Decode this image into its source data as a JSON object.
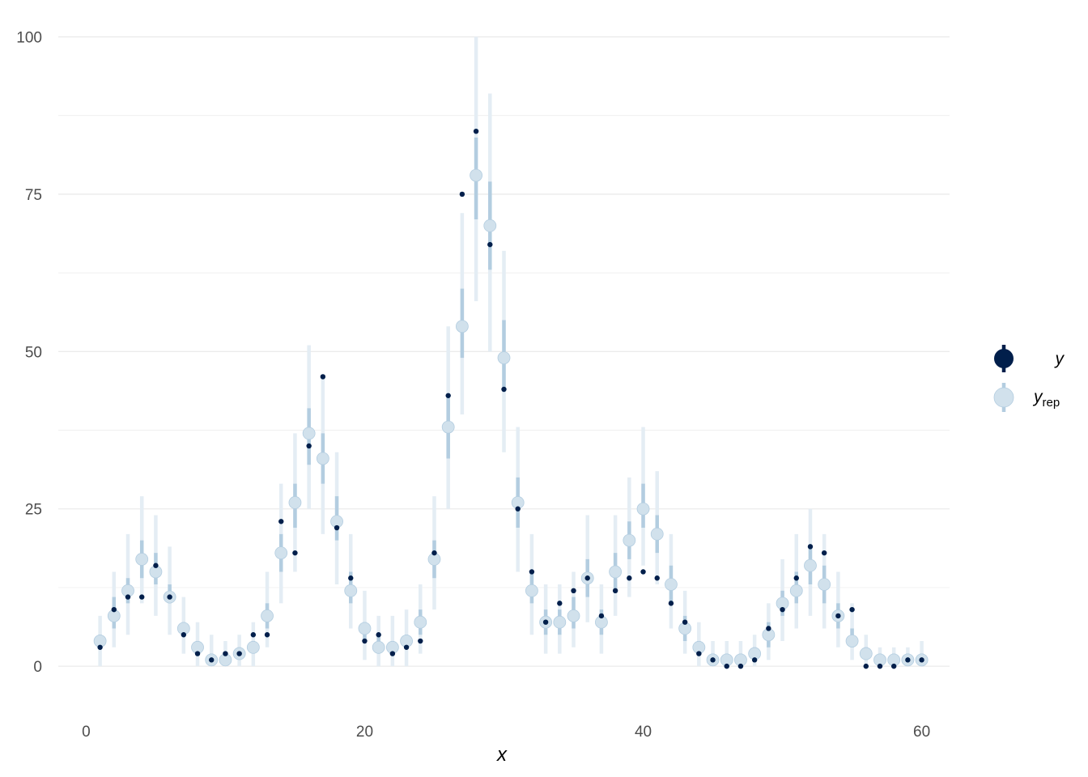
{
  "chart_data": {
    "type": "scatter",
    "xlabel": "x",
    "ylabel": "",
    "xlim": [
      -2,
      62
    ],
    "ylim": [
      -5,
      102
    ],
    "x_ticks": [
      0,
      20,
      40,
      60
    ],
    "y_ticks": [
      0,
      25,
      50,
      75,
      100
    ],
    "x_tick_labels": [
      "0",
      "20",
      "40",
      "60"
    ],
    "y_tick_labels": [
      "0",
      "25",
      "50",
      "75",
      "100"
    ],
    "grid": true,
    "legend_position": "right",
    "colors": {
      "y": "#011f4b",
      "yrep_point": "#d1e1ec",
      "yrep_inner": "#b3cde0",
      "yrep_outer": "#e4edf4",
      "grid": "#ebebeb"
    },
    "legend": [
      {
        "key": "y",
        "label": "y",
        "sub": ""
      },
      {
        "key": "yrep",
        "label": "y",
        "sub": "rep"
      }
    ],
    "x": [
      1,
      2,
      3,
      4,
      5,
      6,
      7,
      8,
      9,
      10,
      11,
      12,
      13,
      14,
      15,
      16,
      17,
      18,
      19,
      20,
      21,
      22,
      23,
      24,
      25,
      26,
      27,
      28,
      29,
      30,
      31,
      32,
      33,
      34,
      35,
      36,
      37,
      38,
      39,
      40,
      41,
      42,
      43,
      44,
      45,
      46,
      47,
      48,
      49,
      50,
      51,
      52,
      53,
      54,
      55,
      56,
      57,
      58,
      59,
      60
    ],
    "series": [
      {
        "name": "y",
        "values": [
          3,
          9,
          11,
          11,
          16,
          11,
          5,
          2,
          1,
          2,
          2,
          5,
          5,
          23,
          18,
          35,
          46,
          22,
          14,
          4,
          5,
          2,
          3,
          4,
          18,
          43,
          75,
          85,
          67,
          44,
          25,
          15,
          7,
          10,
          12,
          14,
          8,
          12,
          14,
          15,
          14,
          10,
          7,
          2,
          1,
          0,
          0,
          1,
          6,
          9,
          14,
          19,
          18,
          8,
          9,
          0,
          0,
          0,
          1,
          1
        ]
      },
      {
        "name": "y_rep",
        "median": [
          4,
          8,
          12,
          17,
          15,
          11,
          6,
          3,
          1,
          1,
          2,
          3,
          8,
          18,
          26,
          37,
          33,
          23,
          12,
          6,
          3,
          3,
          4,
          7,
          17,
          38,
          54,
          78,
          70,
          49,
          26,
          12,
          7,
          7,
          8,
          14,
          7,
          15,
          20,
          25,
          21,
          13,
          6,
          3,
          1,
          1,
          1,
          2,
          5,
          10,
          12,
          16,
          13,
          8,
          4,
          2,
          1,
          1,
          1,
          1
        ],
        "inner_low": [
          3,
          6,
          10,
          14,
          13,
          10,
          5,
          2,
          1,
          1,
          2,
          2,
          6,
          15,
          22,
          32,
          29,
          20,
          10,
          4,
          2,
          2,
          3,
          5,
          14,
          33,
          49,
          71,
          63,
          44,
          22,
          10,
          5,
          5,
          6,
          11,
          5,
          12,
          17,
          22,
          18,
          10,
          4,
          2,
          1,
          0,
          0,
          1,
          3,
          8,
          10,
          13,
          10,
          6,
          3,
          1,
          0,
          0,
          0,
          0
        ],
        "inner_high": [
          5,
          11,
          14,
          20,
          18,
          13,
          7,
          4,
          2,
          2,
          3,
          4,
          10,
          21,
          29,
          41,
          37,
          27,
          15,
          7,
          5,
          4,
          5,
          9,
          20,
          43,
          60,
          84,
          77,
          55,
          30,
          15,
          9,
          9,
          11,
          17,
          9,
          18,
          23,
          29,
          24,
          16,
          8,
          4,
          2,
          2,
          2,
          3,
          7,
          12,
          15,
          19,
          16,
          10,
          6,
          3,
          2,
          2,
          2,
          2
        ],
        "outer_low": [
          0,
          3,
          5,
          10,
          8,
          5,
          2,
          0,
          0,
          0,
          0,
          0,
          3,
          10,
          15,
          25,
          21,
          13,
          6,
          1,
          0,
          0,
          0,
          2,
          9,
          25,
          40,
          58,
          50,
          34,
          15,
          5,
          2,
          2,
          3,
          7,
          2,
          8,
          11,
          16,
          13,
          6,
          2,
          0,
          0,
          0,
          0,
          0,
          1,
          4,
          6,
          8,
          6,
          3,
          1,
          0,
          0,
          0,
          0,
          0
        ],
        "outer_high": [
          8,
          15,
          21,
          27,
          24,
          19,
          11,
          7,
          5,
          4,
          5,
          7,
          15,
          29,
          37,
          51,
          46,
          34,
          21,
          12,
          8,
          8,
          9,
          13,
          27,
          54,
          72,
          100,
          91,
          66,
          38,
          21,
          13,
          13,
          15,
          24,
          13,
          24,
          30,
          38,
          31,
          21,
          12,
          7,
          4,
          4,
          4,
          5,
          10,
          17,
          21,
          25,
          21,
          15,
          10,
          5,
          3,
          3,
          3,
          4
        ]
      }
    ]
  }
}
